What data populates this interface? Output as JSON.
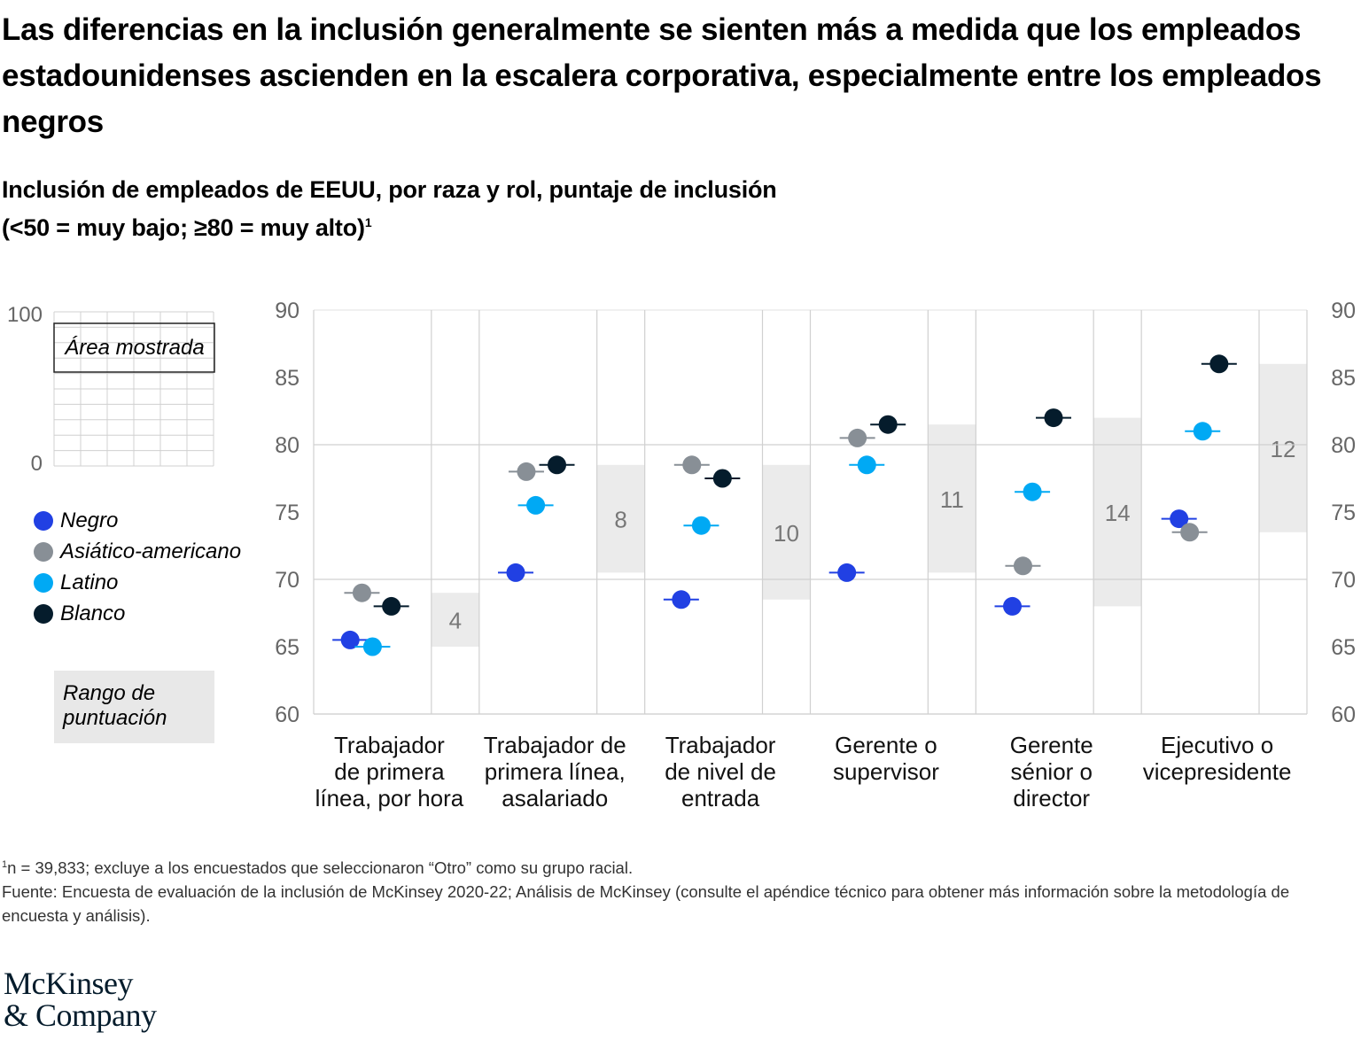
{
  "title": "Las diferencias en la inclusión generalmente se sienten más a medida que los empleados estadounidenses ascienden en la escalera corporativa, especialmente entre los empleados negros",
  "subtitle_line1": "Inclusión de empleados de EEUU, por raza y rol, puntaje de inclusión",
  "subtitle_line2": "(<50 = muy bajo; ≥80 = muy alto)",
  "subtitle_footnote_mark": "1",
  "inset": {
    "label": "Área mostrada",
    "y_top_label": "100",
    "y_bottom_label": "0",
    "shown_range": [
      60,
      90
    ],
    "full_range": [
      0,
      100
    ]
  },
  "range_legend_label": "Rango de puntuación",
  "colors": {
    "Negro": "#2140e3",
    "Asiático-americano": "#888f96",
    "Latino": "#00a9f4",
    "Blanco": "#051c2c",
    "range_box": "#ebebeb",
    "grid": "#d0d0d0",
    "tick_text": "#666666"
  },
  "chart_data": {
    "type": "scatter",
    "title": "Inclusión de empleados de EEUU, por raza y rol, puntaje de inclusión",
    "xlabel": "",
    "ylabel": "Puntaje de inclusión",
    "ylim": [
      60,
      90
    ],
    "yticks": [
      90,
      85,
      80,
      75,
      70,
      65,
      60
    ],
    "grid": true,
    "legend_position": "left",
    "categories": [
      "Trabajador de primera línea, por hora",
      "Trabajador de primera línea, asalariado",
      "Trabajador de nivel de entrada",
      "Gerente o supervisor",
      "Gerente sénior o director",
      "Ejecutivo o vicepresidente"
    ],
    "category_label_lines": [
      [
        "Trabajador",
        "de primera",
        "línea, por hora"
      ],
      [
        "Trabajador de",
        "primera línea,",
        "asalariado"
      ],
      [
        "Trabajador",
        "de nivel de",
        "entrada"
      ],
      [
        "Gerente o",
        "supervisor"
      ],
      [
        "Gerente",
        "sénior o",
        "director"
      ],
      [
        "Ejecutivo o",
        "vicepresidente"
      ]
    ],
    "series": [
      {
        "name": "Negro",
        "values": [
          65.5,
          70.5,
          68.5,
          70.5,
          68.0,
          74.5
        ]
      },
      {
        "name": "Asiático-americano",
        "values": [
          69.0,
          78.0,
          78.5,
          80.5,
          71.0,
          73.5
        ]
      },
      {
        "name": "Latino",
        "values": [
          65.0,
          75.5,
          74.0,
          78.5,
          76.5,
          81.0
        ]
      },
      {
        "name": "Blanco",
        "values": [
          68.0,
          78.5,
          77.5,
          81.5,
          82.0,
          86.0
        ]
      }
    ],
    "score_range_labels": [
      "4",
      "8",
      "10",
      "11",
      "14",
      "12"
    ]
  },
  "footnotes": {
    "note_mark": "1",
    "note": "n = 39,833; excluye a los encuestados que seleccionaron “Otro” como su grupo racial.",
    "source": "Fuente: Encuesta de evaluación de la inclusión de McKinsey 2020-22; Análisis de McKinsey (consulte el apéndice técnico para obtener más información sobre la metodología de encuesta y análisis)."
  },
  "logo": {
    "line1": "McKinsey",
    "line2": "& Company"
  }
}
